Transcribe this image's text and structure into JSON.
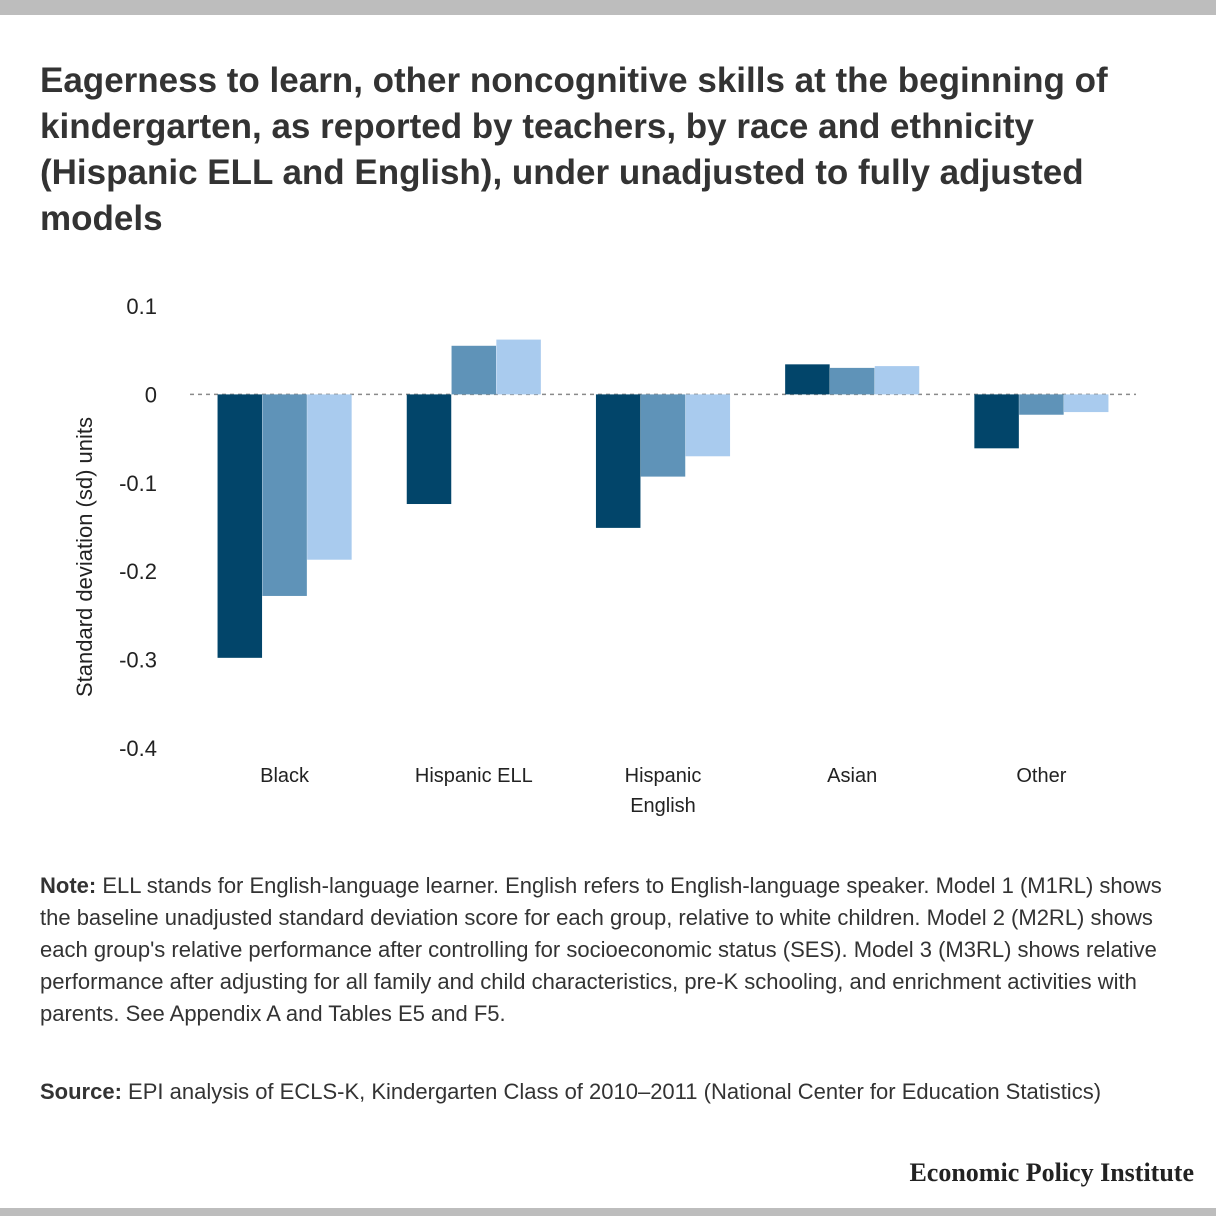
{
  "title": "Eagerness to learn, other noncognitive skills at the beginning of kindergarten, as reported by teachers, by race and ethnicity (Hispanic ELL and English), under unadjusted to fully adjusted models",
  "note_label": "Note:",
  "note_text": " ELL stands for English-language learner. English refers to English-language speaker. Model 1 (M1RL) shows the baseline unadjusted standard deviation score for each group, relative to white children. Model 2 (M2RL) shows each group's relative performance after controlling for socioeconomic status (SES). Model 3 (M3RL) shows relative performance after adjusting for all family and child characteristics, pre-K schooling, and enrichment activities with parents. See Appendix A and Tables E5 and F5.",
  "source_label": "Source:",
  "source_text": " EPI analysis of ECLS-K, Kindergarten Class of 2010–2011 (National Center for Education Statistics)",
  "brand": "Economic Policy Institute",
  "chart_data": {
    "type": "bar",
    "categories": [
      [
        "Black"
      ],
      [
        "Hispanic ELL"
      ],
      [
        "Hispanic",
        "English"
      ],
      [
        "Asian"
      ],
      [
        "Other"
      ]
    ],
    "series": [
      {
        "values": [
          -0.298,
          -0.124,
          -0.151,
          0.034,
          -0.061
        ],
        "color": "#02456a"
      },
      {
        "values": [
          -0.228,
          0.055,
          -0.093,
          0.03,
          -0.023
        ],
        "color": "#5f93b8"
      },
      {
        "values": [
          -0.187,
          0.062,
          -0.07,
          0.032,
          -0.02
        ],
        "color": "#a9cbee"
      }
    ],
    "ylabel": "Standard deviation (sd) units",
    "yticks": [
      0.1,
      0,
      -0.1,
      -0.2,
      -0.3,
      -0.4
    ],
    "ytick_labels": [
      "0.1",
      "0",
      "-0.1",
      "-0.2",
      "-0.3",
      "-0.4"
    ],
    "ylim": [
      -0.4,
      0.1
    ],
    "zero_line": "dashed",
    "grid": false,
    "legend": "none"
  }
}
